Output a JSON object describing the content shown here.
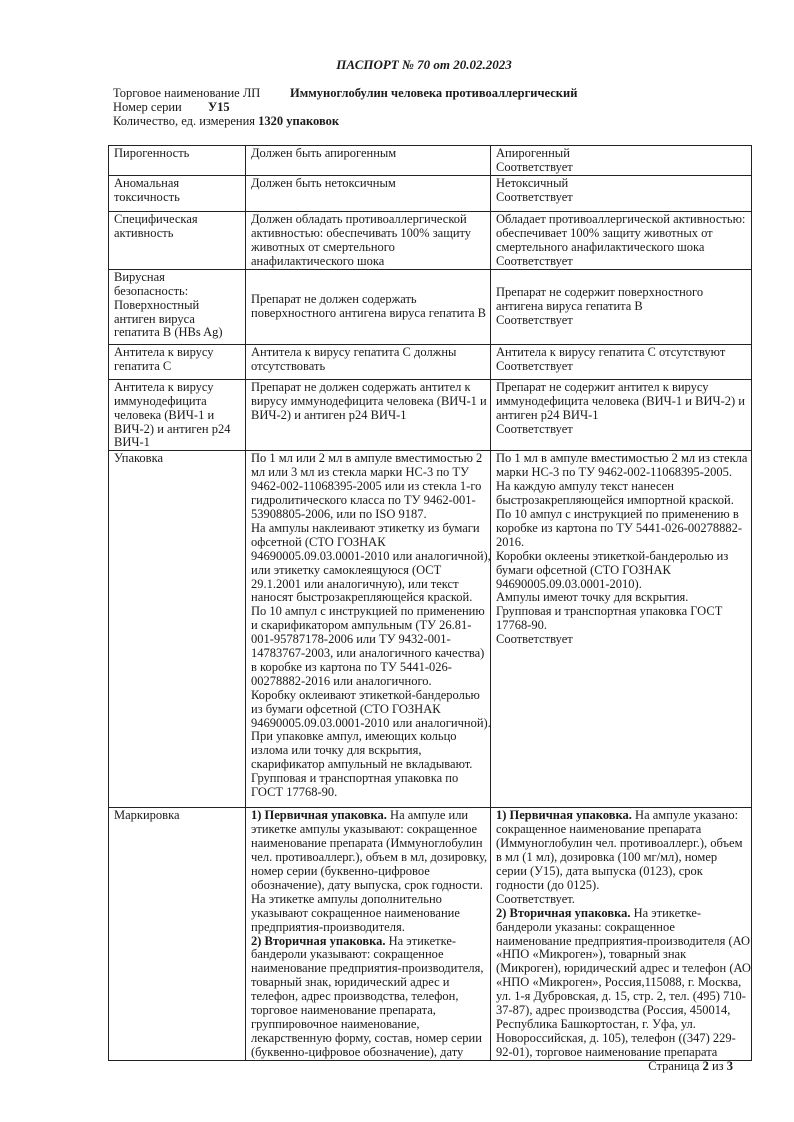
{
  "title": "ПАСПОРТ № 70 от 20.02.2023",
  "header": {
    "trade_name_label": "Торговое наименование ЛП",
    "trade_name_value": "Иммуноглобулин человека противоаллергический",
    "series_label": "Номер серии",
    "series_value": "У15",
    "quantity_label": "Количество, ед. измерения",
    "quantity_value": "1320 упаковок"
  },
  "table": {
    "rows": [
      {
        "label": [
          "Пирогенность"
        ],
        "req": [
          "Должен быть апирогенным"
        ],
        "result": [
          "Апирогенный",
          "Соответствует"
        ]
      },
      {
        "label": [
          "Аномальная",
          "токсичность"
        ],
        "req": [
          "Должен быть нетоксичным"
        ],
        "result": [
          "Нетоксичный",
          "Соответствует"
        ]
      },
      {
        "label": [
          "Специфическая",
          "активность"
        ],
        "req": [
          "Должен обладать противоаллергической",
          "активностью: обеспечивать 100% защиту",
          "животных от смертельного",
          "анафилактического шока"
        ],
        "result": [
          "Обладает противоаллергической активностью:",
          "обеспечивает 100% защиту животных от",
          "смертельного анафилактического шока",
          "Соответствует"
        ]
      },
      {
        "label": [
          "Вирусная",
          "безопасность:",
          "Поверхностный",
          "антиген вируса",
          "гепатита В (HBs Ag)"
        ],
        "req": [
          "Препарат не должен содержать",
          "поверхностного антигена вируса гепатита В"
        ],
        "result": [
          "Препарат не содержит поверхностного",
          "антигена вируса гепатита В",
          "Соответствует"
        ],
        "middle": true
      },
      {
        "label": [
          "Антитела к вирусу",
          "гепатита С"
        ],
        "req": [
          "Антитела к вирусу гепатита С должны",
          "отсутствовать"
        ],
        "result": [
          "Антитела к вирусу гепатита С отсутствуют",
          "Соответствует"
        ]
      },
      {
        "label": [
          "Антитела к вирусу",
          "иммунодефицита",
          "человека (ВИЧ-1 и",
          "ВИЧ-2) и антиген р24",
          "ВИЧ-1"
        ],
        "req": [
          "Препарат не должен содержать антител к",
          "вирусу иммунодефицита человека (ВИЧ-1 и",
          "ВИЧ-2) и антиген р24 ВИЧ-1"
        ],
        "result": [
          "Препарат не содержит антител к вирусу",
          "иммунодефицита человека (ВИЧ-1 и ВИЧ-2) и",
          "антиген р24 ВИЧ-1",
          "Соответствует"
        ]
      },
      {
        "label": [
          "Упаковка"
        ],
        "req": [
          "По 1 мл или 2 мл в ампуле вместимостью 2",
          "мл или 3 мл из стекла марки НС-3 по ТУ",
          "9462-002-11068395-2005 или из стекла 1-го",
          "гидролитического класса по ТУ 9462-001-",
          "53908805-2006, или по ISO 9187.",
          "На ампулы наклеивают этикетку из бумаги",
          "офсетной (СТО ГОЗНАК",
          "94690005.09.03.0001-2010 или аналогичной),",
          "или этикетку самоклеящуюся (ОСТ",
          "29.1.2001 или аналогичную), или текст",
          "наносят быстрозакрепляющейся краской.",
          "По 10 ампул с инструкцией по применению",
          "и скарификатором ампульным (ТУ 26.81-",
          "001-95787178-2006 или ТУ 9432-001-",
          "14783767-2003, или аналогичного качества)",
          "в коробке из картона по ТУ 5441-026-",
          "00278882-2016 или аналогичного.",
          "Коробку оклеивают этикеткой-бандеролью",
          "из бумаги офсетной (СТО ГОЗНАК",
          "94690005.09.03.0001-2010 или аналогичной).",
          "При упаковке ампул, имеющих кольцо",
          "излома или точку для вскрытия,",
          "скарификатор ампульный не вкладывают.",
          "Групповая и транспортная упаковка по",
          "ГОСТ 17768-90."
        ],
        "result": [
          "По 1 мл в ампуле вместимостью 2 мл из стекла",
          "марки НС-3 по ТУ 9462-002-11068395-2005.",
          "На каждую ампулу текст нанесен",
          "быстрозакрепляющейся импортной краской.",
          "По 10 ампул с инструкцией по применению в",
          "коробке из картона по ТУ 5441-026-00278882-",
          "2016.",
          "Коробки оклеены этикеткой-бандеролью из",
          "бумаги офсетной (СТО ГОЗНАК",
          "94690005.09.03.0001-2010).",
          "Ампулы имеют точку для вскрытия.",
          "Групповая и транспортная упаковка ГОСТ",
          "17768-90.",
          "Соответствует"
        ]
      },
      {
        "label": [
          "Маркировка"
        ],
        "req": [
          {
            "bold": "1) Первичная упаковка.",
            "text": " На ампуле или"
          },
          "этикетке ампулы указывают: сокращенное",
          "наименование препарата (Иммуноглобулин",
          "чел. противоаллерг.), объем в мл, дозировку,",
          "номер серии (буквенно-цифровое",
          "обозначение), дату выпуска, срок годности.",
          "На этикетке ампулы дополнительно",
          "указывают сокращенное наименование",
          "предприятия-производителя.",
          {
            "bold": "2) Вторичная упаковка.",
            "text": " На этикетке-"
          },
          "бандероли указывают: сокращенное",
          "наименование предприятия-производителя,",
          "товарный знак, юридический адрес и",
          "телефон, адрес производства, телефон,",
          "торговое наименование препарата,",
          "группировочное наименование,",
          "лекарственную форму, состав, номер серии",
          "(буквенно-цифровое обозначение), дату"
        ],
        "result": [
          {
            "bold": "1) Первичная упаковка.",
            "text": " На ампуле указано:"
          },
          "сокращенное наименование препарата",
          "(Иммуноглобулин чел. противоаллерг.), объем",
          "в мл (1 мл), дозировка (100 мг/мл), номер",
          "серии (У15), дата выпуска (0123), срок",
          "годности (до 0125).",
          "Соответствует.",
          {
            "bold": "2) Вторичная упаковка.",
            "text": " На этикетке-"
          },
          "бандероли указаны: сокращенное",
          "наименование предприятия-производителя (АО",
          "«НПО «Микроген»), товарный знак",
          "(Микроген), юридический адрес и телефон (АО",
          "«НПО «Микроген», Россия,115088, г. Москва,",
          "ул. 1-я Дубровская, д. 15, стр. 2, тел. (495) 710-",
          "37-87), адрес производства (Россия, 450014,",
          "Республика Башкортостан, г. Уфа, ул.",
          "Новороссийская, д. 105), телефон ((347) 229-",
          "92-01), торговое наименование препарата"
        ]
      }
    ]
  },
  "footer": {
    "page_label": "Страница",
    "page_current": "2",
    "page_of": "из",
    "page_total": "3"
  }
}
